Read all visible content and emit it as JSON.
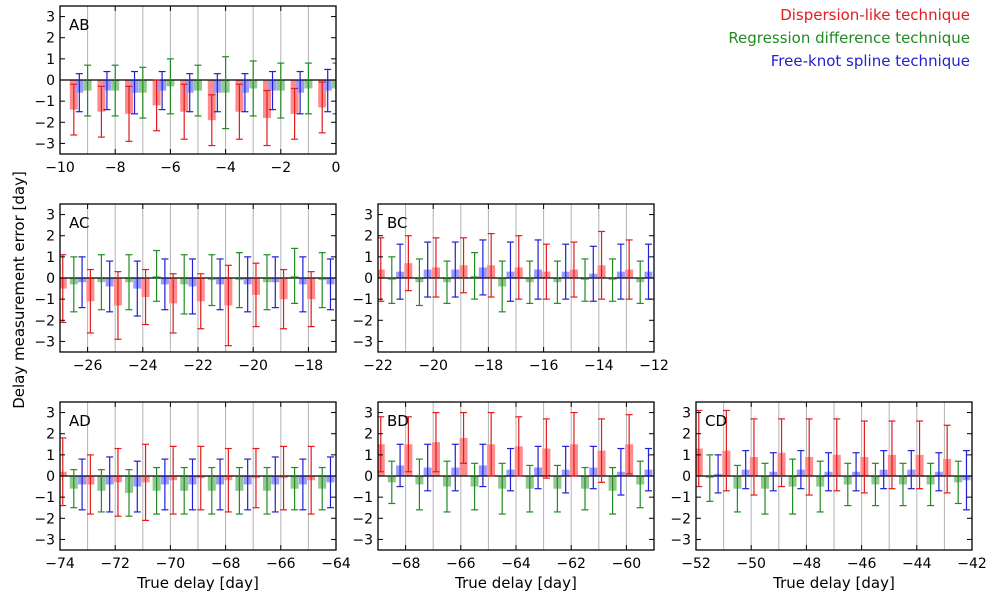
{
  "colors": {
    "dispersion": "#e41a1c",
    "regression": "#228b22",
    "spline": "#1f1fd6",
    "dispersion_fill": "#ff8c8c",
    "regression_fill": "#8fc98f",
    "spline_fill": "#9b9bff"
  },
  "legend": {
    "dispersion": "Dispersion-like technique",
    "regression": "Regression difference technique",
    "spline": "Free-knot spline technique"
  },
  "axis_labels": {
    "ylabel": "Delay measurement error [day]",
    "xlabel": "True delay [day]"
  },
  "chart_data": [
    {
      "type": "bar",
      "panel": "AB",
      "title": "AB",
      "xlim": [
        -10,
        0
      ],
      "xticks": [
        -10,
        -8,
        -6,
        -4,
        -2,
        0
      ],
      "ylim": [
        -3.5,
        3.5
      ],
      "yticks": [
        -3,
        -2,
        -1,
        0,
        1,
        2,
        3
      ],
      "show_xlabel": false,
      "show_ylabel": true,
      "vlines": [
        -9,
        -8,
        -7,
        -6,
        -5,
        -4,
        -3,
        -2,
        -1
      ],
      "series": [
        {
          "name": "Dispersion-like technique",
          "key": "dispersion",
          "x": [
            -9.5,
            -8.5,
            -7.5,
            -6.5,
            -5.5,
            -4.5,
            -3.5,
            -2.5,
            -1.5,
            -0.5
          ],
          "values": [
            -1.4,
            -1.5,
            -1.6,
            -1.2,
            -1.5,
            -1.9,
            -1.5,
            -1.8,
            -1.6,
            -1.3
          ],
          "err": [
            1.2,
            1.2,
            1.3,
            1.2,
            1.3,
            1.2,
            1.3,
            1.3,
            1.2,
            1.2
          ]
        },
        {
          "name": "Regression difference technique",
          "key": "regression",
          "x": [
            -9.0,
            -8.0,
            -7.0,
            -6.0,
            -5.0,
            -4.0,
            -3.0,
            -2.0,
            -1.0,
            0.0
          ],
          "values": [
            -0.5,
            -0.5,
            -0.6,
            -0.3,
            -0.5,
            -0.6,
            -0.4,
            -0.5,
            -0.4,
            -0.4
          ],
          "err": [
            1.2,
            1.2,
            1.2,
            1.3,
            1.2,
            1.7,
            1.3,
            1.3,
            1.2,
            1.2
          ]
        },
        {
          "name": "Free-knot spline technique",
          "key": "spline",
          "x": [
            -9.3,
            -8.3,
            -7.3,
            -6.3,
            -5.3,
            -4.3,
            -3.3,
            -2.3,
            -1.3,
            -0.3
          ],
          "values": [
            -0.6,
            -0.5,
            -0.6,
            -0.5,
            -0.6,
            -0.6,
            -0.6,
            -0.5,
            -0.6,
            -0.5
          ],
          "err": [
            0.9,
            0.9,
            1.0,
            0.9,
            0.9,
            0.9,
            0.9,
            0.9,
            1.0,
            1.0
          ]
        }
      ]
    },
    {
      "type": "bar",
      "panel": "AC",
      "title": "AC",
      "xlim": [
        -27,
        -17
      ],
      "xticks": [
        -26,
        -24,
        -22,
        -20,
        -18
      ],
      "ylim": [
        -3.5,
        3.5
      ],
      "yticks": [
        -3,
        -2,
        -1,
        0,
        1,
        2,
        3
      ],
      "show_xlabel": false,
      "show_ylabel": true,
      "vlines": [
        -26,
        -25,
        -24,
        -23,
        -22,
        -21,
        -20,
        -19,
        -18
      ],
      "series": [
        {
          "name": "Dispersion-like technique",
          "key": "dispersion",
          "x": [
            -26.9,
            -25.9,
            -24.9,
            -23.9,
            -22.9,
            -21.9,
            -20.9,
            -19.9,
            -18.9,
            -17.9
          ],
          "values": [
            -0.5,
            -1.1,
            -1.3,
            -0.9,
            -1.2,
            -1.1,
            -1.3,
            -0.8,
            -1.0,
            -1.0
          ],
          "err": [
            1.6,
            1.5,
            1.6,
            1.3,
            1.4,
            1.3,
            1.9,
            1.5,
            1.4,
            1.3
          ]
        },
        {
          "name": "Regression difference technique",
          "key": "regression",
          "x": [
            -26.5,
            -25.5,
            -24.5,
            -23.5,
            -22.5,
            -21.5,
            -20.5,
            -19.5,
            -18.5,
            -17.5
          ],
          "values": [
            -0.3,
            -0.2,
            -0.2,
            0.1,
            -0.3,
            -0.1,
            -0.1,
            -0.2,
            0.1,
            -0.1
          ],
          "err": [
            1.3,
            1.3,
            1.3,
            1.2,
            1.4,
            1.2,
            1.3,
            1.3,
            1.3,
            1.3
          ]
        },
        {
          "name": "Free-knot spline technique",
          "key": "spline",
          "x": [
            -26.2,
            -25.2,
            -24.2,
            -23.2,
            -22.2,
            -21.2,
            -20.2,
            -19.2,
            -18.2,
            -17.2
          ],
          "values": [
            -0.2,
            -0.4,
            -0.5,
            -0.3,
            -0.4,
            -0.3,
            -0.3,
            -0.2,
            -0.3,
            -0.3
          ],
          "err": [
            1.2,
            1.2,
            1.3,
            1.2,
            1.3,
            1.2,
            1.3,
            1.2,
            1.3,
            1.2
          ]
        }
      ]
    },
    {
      "type": "bar",
      "panel": "BC",
      "title": "BC",
      "xlim": [
        -22,
        -12
      ],
      "xticks": [
        -22,
        -20,
        -18,
        -16,
        -14,
        -12
      ],
      "ylim": [
        -3.5,
        3.5
      ],
      "yticks": [
        -3,
        -2,
        -1,
        0,
        1,
        2,
        3
      ],
      "show_xlabel": false,
      "show_ylabel": false,
      "vlines": [
        -21,
        -20,
        -19,
        -18,
        -17,
        -16,
        -15,
        -14,
        -13
      ],
      "series": [
        {
          "name": "Dispersion-like technique",
          "key": "dispersion",
          "x": [
            -21.9,
            -20.9,
            -19.9,
            -18.9,
            -17.9,
            -16.9,
            -15.9,
            -14.9,
            -13.9,
            -12.9
          ],
          "values": [
            0.4,
            0.7,
            0.5,
            0.6,
            0.6,
            0.5,
            0.3,
            0.4,
            0.6,
            0.4
          ],
          "err": [
            1.5,
            1.3,
            1.4,
            1.3,
            1.5,
            1.5,
            1.3,
            1.3,
            1.6,
            1.4
          ]
        },
        {
          "name": "Regression difference technique",
          "key": "regression",
          "x": [
            -21.5,
            -20.5,
            -19.5,
            -18.5,
            -17.5,
            -16.5,
            -15.5,
            -14.5,
            -13.5,
            -12.5
          ],
          "values": [
            -0.1,
            -0.2,
            -0.2,
            0.1,
            -0.4,
            -0.2,
            -0.2,
            -0.1,
            -0.1,
            -0.2
          ],
          "err": [
            1.1,
            1.1,
            1.0,
            1.1,
            1.2,
            1.0,
            1.0,
            1.0,
            1.0,
            1.0
          ]
        },
        {
          "name": "Free-knot spline technique",
          "key": "spline",
          "x": [
            -21.2,
            -20.2,
            -19.2,
            -18.2,
            -17.2,
            -16.2,
            -15.2,
            -14.2,
            -13.2,
            -12.2
          ],
          "values": [
            0.3,
            0.4,
            0.4,
            0.5,
            0.3,
            0.4,
            0.3,
            0.2,
            0.3,
            0.3
          ],
          "err": [
            1.3,
            1.3,
            1.3,
            1.3,
            1.4,
            1.4,
            1.3,
            1.3,
            1.3,
            1.3
          ]
        }
      ]
    },
    {
      "type": "bar",
      "panel": "AD",
      "title": "AD",
      "xlim": [
        -74,
        -64
      ],
      "xticks": [
        -74,
        -72,
        -70,
        -68,
        -66,
        -64
      ],
      "ylim": [
        -3.5,
        3.5
      ],
      "yticks": [
        -3,
        -2,
        -1,
        0,
        1,
        2,
        3
      ],
      "show_xlabel": false,
      "show_ylabel": true,
      "vlines": [
        -73,
        -72,
        -71,
        -70,
        -69,
        -68,
        -67,
        -66,
        -65
      ],
      "series": [
        {
          "name": "Dispersion-like technique",
          "key": "dispersion",
          "x": [
            -73.9,
            -72.9,
            -71.9,
            -70.9,
            -69.9,
            -68.9,
            -67.9,
            -66.9,
            -65.9,
            -64.9
          ],
          "values": [
            0.2,
            -0.4,
            -0.3,
            -0.3,
            -0.2,
            -0.1,
            -0.2,
            -0.1,
            -0.1,
            -0.2
          ],
          "err": [
            1.6,
            1.4,
            1.6,
            1.8,
            1.6,
            1.5,
            1.5,
            1.4,
            1.5,
            1.6
          ]
        },
        {
          "name": "Regression difference technique",
          "key": "regression",
          "x": [
            -73.5,
            -72.5,
            -71.5,
            -70.5,
            -69.5,
            -68.5,
            -67.5,
            -66.5,
            -65.5,
            -64.5
          ],
          "values": [
            -0.6,
            -0.7,
            -0.8,
            -0.7,
            -0.7,
            -0.7,
            -0.7,
            -0.7,
            -0.6,
            -0.6
          ],
          "err": [
            0.9,
            1.0,
            1.1,
            1.1,
            1.1,
            1.1,
            1.1,
            1.1,
            1.0,
            1.0
          ]
        },
        {
          "name": "Free-knot spline technique",
          "key": "spline",
          "x": [
            -73.2,
            -72.2,
            -71.2,
            -70.2,
            -69.2,
            -68.2,
            -67.2,
            -66.2,
            -65.2,
            -64.2
          ],
          "values": [
            -0.4,
            -0.4,
            -0.5,
            -0.4,
            -0.4,
            -0.4,
            -0.4,
            -0.4,
            -0.4,
            -0.3
          ],
          "err": [
            1.2,
            1.3,
            1.2,
            1.2,
            1.2,
            1.2,
            1.2,
            1.3,
            1.2,
            1.2
          ]
        }
      ]
    },
    {
      "type": "bar",
      "panel": "BD",
      "title": "BD",
      "xlim": [
        -69,
        -59
      ],
      "xticks": [
        -68,
        -66,
        -64,
        -62,
        -60
      ],
      "ylim": [
        -3.5,
        3.5
      ],
      "yticks": [
        -3,
        -2,
        -1,
        0,
        1,
        2,
        3
      ],
      "show_xlabel": true,
      "show_ylabel": false,
      "vlines": [
        -68,
        -67,
        -66,
        -65,
        -64,
        -63,
        -62,
        -61,
        -60
      ],
      "series": [
        {
          "name": "Dispersion-like technique",
          "key": "dispersion",
          "x": [
            -68.9,
            -67.9,
            -66.9,
            -65.9,
            -64.9,
            -63.9,
            -62.9,
            -61.9,
            -60.9,
            -59.9
          ],
          "values": [
            1.5,
            1.5,
            1.6,
            1.8,
            1.5,
            1.4,
            1.3,
            1.5,
            1.2,
            1.5
          ],
          "err": [
            1.3,
            1.3,
            1.4,
            1.2,
            1.5,
            1.4,
            1.4,
            1.5,
            1.5,
            1.4
          ]
        },
        {
          "name": "Regression difference technique",
          "key": "regression",
          "x": [
            -68.5,
            -67.5,
            -66.5,
            -65.5,
            -64.5,
            -63.5,
            -62.5,
            -61.5,
            -60.5,
            -59.5
          ],
          "values": [
            -0.3,
            -0.4,
            -0.5,
            -0.5,
            -0.6,
            -0.6,
            -0.6,
            -0.6,
            -0.7,
            -0.4
          ],
          "err": [
            1.0,
            1.2,
            1.2,
            1.1,
            1.2,
            1.1,
            1.1,
            1.0,
            1.1,
            1.1
          ]
        },
        {
          "name": "Free-knot spline technique",
          "key": "spline",
          "x": [
            -68.2,
            -67.2,
            -66.2,
            -65.2,
            -64.2,
            -63.2,
            -62.2,
            -61.2,
            -60.2,
            -59.2
          ],
          "values": [
            0.5,
            0.4,
            0.4,
            0.5,
            0.3,
            0.4,
            0.3,
            0.4,
            0.2,
            0.3
          ],
          "err": [
            1.0,
            1.1,
            1.1,
            1.0,
            1.0,
            1.0,
            1.1,
            1.0,
            1.1,
            1.0
          ]
        }
      ]
    },
    {
      "type": "bar",
      "panel": "CD",
      "title": "CD",
      "xlim": [
        -52,
        -42
      ],
      "xticks": [
        -52,
        -50,
        -48,
        -46,
        -44,
        -42
      ],
      "ylim": [
        -3.5,
        3.5
      ],
      "yticks": [
        -3,
        -2,
        -1,
        0,
        1,
        2,
        3
      ],
      "show_xlabel": true,
      "show_ylabel": false,
      "vlines": [
        -51,
        -50,
        -49,
        -48,
        -47,
        -46,
        -45,
        -44,
        -43
      ],
      "series": [
        {
          "name": "Dispersion-like technique",
          "key": "dispersion",
          "x": [
            -51.9,
            -50.9,
            -49.9,
            -48.9,
            -47.9,
            -46.9,
            -45.9,
            -44.9,
            -43.9,
            -42.9
          ],
          "values": [
            1.3,
            1.2,
            0.9,
            1.1,
            0.9,
            1.0,
            0.9,
            1.0,
            1.0,
            0.8
          ],
          "err": [
            1.8,
            1.9,
            1.8,
            1.6,
            1.8,
            1.7,
            1.7,
            1.6,
            1.6,
            1.6
          ]
        },
        {
          "name": "Regression difference technique",
          "key": "regression",
          "x": [
            -51.5,
            -50.5,
            -49.5,
            -48.5,
            -47.5,
            -46.5,
            -45.5,
            -44.5,
            -43.5,
            -42.5
          ],
          "values": [
            -0.1,
            -0.6,
            -0.6,
            -0.5,
            -0.5,
            -0.4,
            -0.4,
            -0.4,
            -0.4,
            -0.3
          ],
          "err": [
            1.1,
            1.1,
            1.2,
            1.3,
            1.2,
            1.0,
            1.0,
            1.0,
            1.0,
            1.0
          ]
        },
        {
          "name": "Free-knot spline technique",
          "key": "spline",
          "x": [
            -51.2,
            -50.2,
            -49.2,
            -48.2,
            -47.2,
            -46.2,
            -45.2,
            -44.2,
            -43.2,
            -42.2
          ],
          "values": [
            0.1,
            0.3,
            0.2,
            0.3,
            0.2,
            0.2,
            0.3,
            0.3,
            0.2,
            -0.2
          ],
          "err": [
            0.9,
            0.9,
            0.9,
            0.9,
            0.9,
            0.9,
            0.9,
            0.9,
            0.9,
            1.4
          ]
        }
      ]
    }
  ]
}
